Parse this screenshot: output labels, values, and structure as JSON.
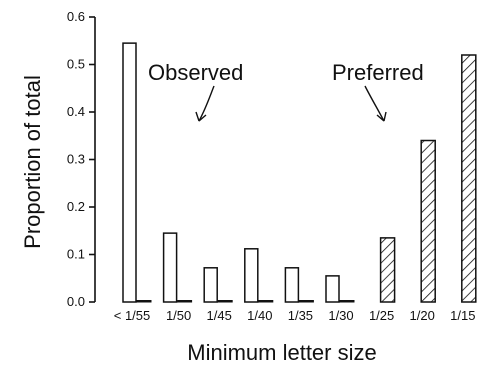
{
  "chart_data": {
    "type": "bar",
    "xlabel": "Minimum letter size",
    "ylabel": "Proportion of total",
    "ylim": [
      0,
      0.6
    ],
    "yticks": [
      "0.0",
      "0.1",
      "0.2",
      "0.3",
      "0.4",
      "0.5",
      "0.6"
    ],
    "categories": [
      "< 1/55",
      "1/50",
      "1/45",
      "1/40",
      "1/35",
      "1/30",
      "1/25",
      "1/20",
      "1/15"
    ],
    "series": [
      {
        "name": "Observed",
        "values": [
          0.545,
          0.145,
          0.072,
          0.112,
          0.072,
          0.055,
          0.0,
          0.0,
          0.0
        ],
        "fill": "white"
      },
      {
        "name": "Preferred",
        "values": [
          0.003,
          0.003,
          0.003,
          0.003,
          0.003,
          0.003,
          0.135,
          0.34,
          0.52
        ],
        "fill": "hatched"
      }
    ],
    "annotations": [
      "Observed",
      "Preferred"
    ],
    "colors": {
      "stroke": "#111111",
      "background": "#ffffff"
    }
  }
}
